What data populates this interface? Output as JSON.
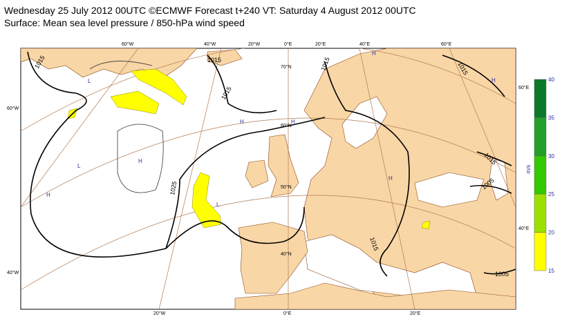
{
  "header": {
    "line1": "Wednesday 25 July 2012 00UTC ©ECMWF Forecast t+240 VT: Saturday 4 August 2012 00UTC",
    "line2": "Surface: Mean sea level pressure / 850-hPa wind speed"
  },
  "graticule_labels": [
    "60°W",
    "40°W",
    "20°W",
    "0°E",
    "20°E",
    "40°E",
    "60°E",
    "60°E",
    "40°E",
    "60°W",
    "40°W",
    "20°W",
    "0°E",
    "20°E",
    "70°N",
    "60°N",
    "50°N",
    "40°N"
  ],
  "contour_labels": [
    "1015",
    "1015",
    "1015",
    "1015",
    "1015",
    "1025",
    "1015",
    "1005",
    "1015",
    "1005"
  ],
  "pressure_centers": [
    "H",
    "L",
    "H",
    "L",
    "H",
    "H",
    "H",
    "H",
    "L",
    "H"
  ],
  "legend": {
    "ticks": [
      15,
      20,
      25,
      30,
      35,
      40
    ],
    "colors": [
      "#ffff00",
      "#9be000",
      "#33c800",
      "#22a02a",
      "#0a7a2a"
    ],
    "unit": "m/s"
  }
}
